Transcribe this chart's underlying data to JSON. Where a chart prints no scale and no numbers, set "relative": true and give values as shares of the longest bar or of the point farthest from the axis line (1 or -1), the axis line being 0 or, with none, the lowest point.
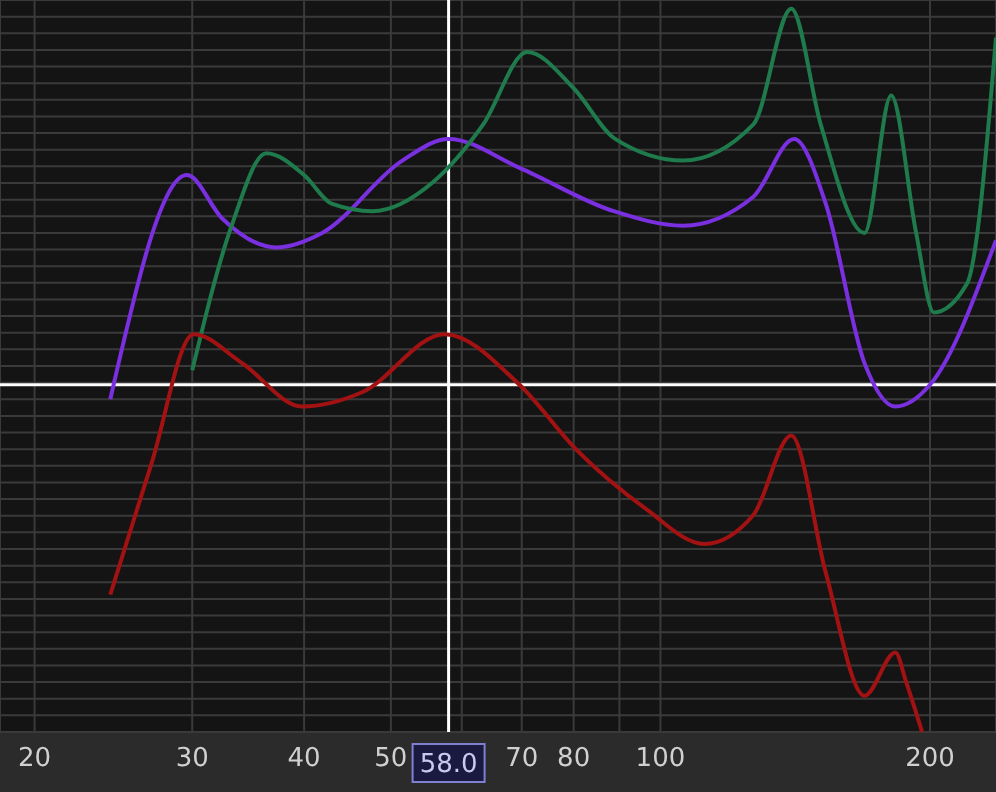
{
  "chart_data": {
    "type": "line",
    "relative": true,
    "log": "x",
    "grid": true,
    "legend": false,
    "marker": "none",
    "line_style": "solid",
    "xlim": [
      18.3,
      237
    ],
    "xticks": [
      20,
      30,
      40,
      50,
      {
        "value": 60,
        "label": null
      },
      70,
      80,
      {
        "value": 90,
        "label": null
      },
      100,
      200
    ],
    "ref_lines": [
      {
        "axis": "x",
        "value": 58,
        "label": "58.0",
        "color": "#ffffff"
      },
      {
        "axis": "y",
        "value": 0.48,
        "label": null,
        "color": "#ffffff"
      }
    ],
    "series": [
      {
        "color": "#7a2fe0",
        "x": [
          24.3,
          29.6,
          32.4,
          37.2,
          41.9,
          51.5,
          58,
          69.6,
          88.7,
          106,
          127,
          141,
          153,
          169,
          183,
          200,
          237
        ],
        "values": [
          0.46,
          0.77,
          0.71,
          0.67,
          0.69,
          0.79,
          0.82,
          0.78,
          0.72,
          0.7,
          0.74,
          0.82,
          0.73,
          0.51,
          0.45,
          0.48,
          0.68
        ]
      },
      {
        "color": "#1f7a4c",
        "x": [
          30,
          33.2,
          36.3,
          40,
          43,
          47.7,
          55.7,
          63.4,
          71,
          80,
          89,
          106,
          127,
          140,
          151,
          169,
          181,
          193,
          202,
          220,
          237
        ],
        "values": [
          0.5,
          0.7,
          0.8,
          0.77,
          0.73,
          0.72,
          0.76,
          0.84,
          0.94,
          0.89,
          0.82,
          0.79,
          0.84,
          1,
          0.84,
          0.69,
          0.88,
          0.69,
          0.58,
          0.62,
          0.96
        ]
      },
      {
        "color": "#a31212",
        "x": [
          24.3,
          27,
          30.1,
          34.1,
          39.8,
          46.5,
          57.4,
          69.6,
          80.6,
          96,
          112,
          127,
          140,
          153,
          169,
          183,
          188,
          196
        ],
        "values": [
          0.19,
          0.37,
          0.55,
          0.51,
          0.45,
          0.47,
          0.55,
          0.48,
          0.39,
          0.31,
          0.26,
          0.3,
          0.41,
          0.22,
          0.05,
          0.11,
          0.07,
          0
        ]
      }
    ]
  }
}
